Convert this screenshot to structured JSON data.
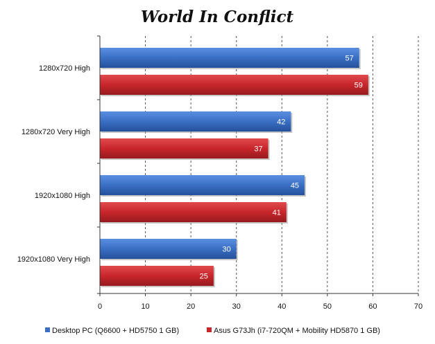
{
  "chart_data": {
    "type": "bar",
    "orientation": "horizontal",
    "title": "World In Conflict",
    "categories": [
      "1280x720 High",
      "1280x720 Very High",
      "1920x1080 High",
      "1920x1080 Very High"
    ],
    "series": [
      {
        "name": "Desktop PC (Q6600 + HD5750 1 GB)",
        "values": [
          57,
          42,
          45,
          30
        ],
        "color": "#3a6fc4"
      },
      {
        "name": "Asus G73Jh (i7-720QM + Mobility HD5870 1 GB)",
        "values": [
          59,
          37,
          41,
          25
        ],
        "color": "#c8262b"
      }
    ],
    "xlim": [
      0,
      70
    ],
    "xticks": [
      0,
      10,
      20,
      30,
      40,
      50,
      60,
      70
    ],
    "grid": "vertical-dashed",
    "legend_position": "bottom",
    "data_labels": true
  }
}
